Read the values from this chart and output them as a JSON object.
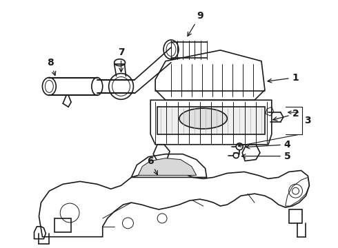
{
  "background_color": "#ffffff",
  "line_color": "#1a1a1a",
  "figsize": [
    4.9,
    3.6
  ],
  "dpi": 100,
  "lw_main": 1.2,
  "lw_thin": 0.7,
  "lw_thick": 1.5
}
